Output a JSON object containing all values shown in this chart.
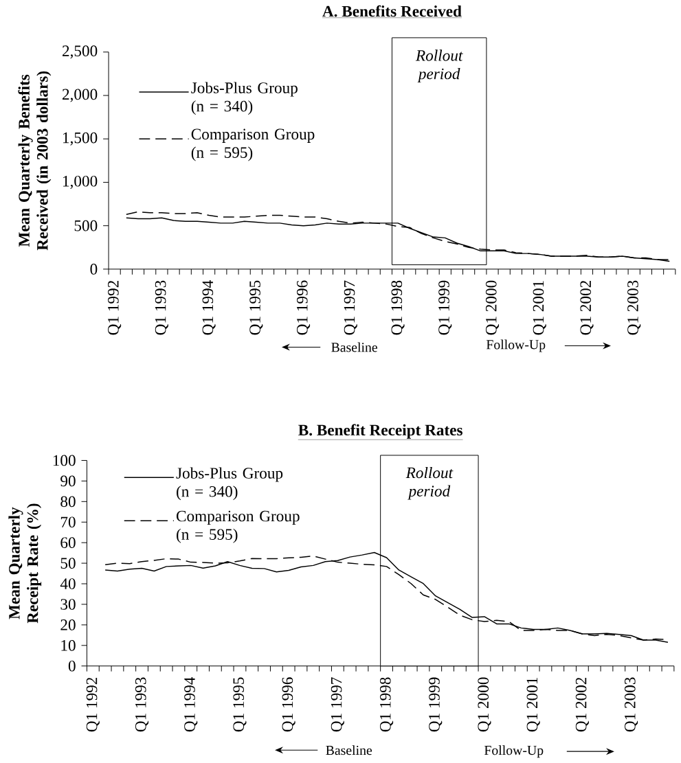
{
  "chart_data": [
    {
      "type": "line",
      "title": "A. Benefits Received",
      "ylabel": "Mean Quarterly Benefits Received (in 2003 dollars)",
      "categories": [
        "Q1 1992",
        null,
        null,
        null,
        "Q1 1993",
        null,
        null,
        null,
        "Q1 1994",
        null,
        null,
        null,
        "Q1 1995",
        null,
        null,
        null,
        "Q1 1996",
        null,
        null,
        null,
        "Q1 1997",
        null,
        null,
        null,
        "Q1 1998",
        null,
        null,
        null,
        "Q1 1999",
        null,
        null,
        null,
        "Q1 2000",
        null,
        null,
        null,
        "Q1 2001",
        null,
        null,
        null,
        "Q1 2002",
        null,
        null,
        null,
        "Q1 2003",
        null,
        null,
        null
      ],
      "series": [
        {
          "name": "Jobs-Plus Group (n = 340)",
          "color": "#000000",
          "line_style": "solid",
          "values": [
            null,
            590,
            580,
            580,
            590,
            560,
            550,
            550,
            540,
            530,
            530,
            550,
            540,
            530,
            530,
            510,
            500,
            510,
            530,
            520,
            520,
            530,
            530,
            530,
            530,
            470,
            420,
            370,
            360,
            300,
            260,
            210,
            210,
            210,
            180,
            180,
            170,
            150,
            150,
            150,
            150,
            140,
            140,
            150,
            130,
            120,
            110,
            90
          ]
        },
        {
          "name": "Comparison Group (n = 595)",
          "color": "#000000",
          "line_style": "dashed",
          "values": [
            null,
            630,
            660,
            650,
            650,
            640,
            640,
            650,
            620,
            600,
            600,
            600,
            610,
            620,
            620,
            610,
            600,
            600,
            580,
            550,
            530,
            540,
            530,
            520,
            490,
            480,
            410,
            360,
            320,
            290,
            250,
            230,
            220,
            220,
            190,
            180,
            170,
            150,
            150,
            150,
            160,
            140,
            140,
            150,
            130,
            130,
            110,
            110
          ]
        }
      ],
      "ylim": [
        0,
        2500
      ],
      "yticks": [
        0,
        500,
        {
          "value": 1000,
          "label": "1,000"
        },
        {
          "value": 1500,
          "label": "1,500"
        },
        {
          "value": 2000,
          "label": "2,000"
        },
        {
          "value": 2500,
          "label": "2,500"
        }
      ],
      "legend": "top left",
      "marker": "none",
      "bands": [
        {
          "axis": "x",
          "from": "Q1 1998",
          "to": "Q1 2000",
          "label": "Rollout period"
        }
      ],
      "annotations": [
        "Baseline",
        "Follow-Up"
      ]
    },
    {
      "type": "line",
      "title": "B. Benefit Receipt Rates",
      "ylabel": "Mean Quarterly Receipt Rate (%)",
      "categories": [
        "Q1 1992",
        null,
        null,
        null,
        "Q1 1993",
        null,
        null,
        null,
        "Q1 1994",
        null,
        null,
        null,
        "Q1 1995",
        null,
        null,
        null,
        "Q1 1996",
        null,
        null,
        null,
        "Q1 1997",
        null,
        null,
        null,
        "Q1 1998",
        null,
        null,
        null,
        "Q1 1999",
        null,
        null,
        null,
        "Q1 2000",
        null,
        null,
        null,
        "Q1 2001",
        null,
        null,
        null,
        "Q1 2002",
        null,
        null,
        null,
        "Q1 2003",
        null,
        null,
        null
      ],
      "series": [
        {
          "name": "Jobs-Plus Group (n = 340)",
          "color": "#000000",
          "line_style": "solid",
          "values": [
            null,
            46.7,
            46.2,
            47.1,
            47.5,
            46.2,
            48.4,
            48.7,
            48.9,
            47.6,
            48.7,
            50.8,
            48.9,
            47.5,
            47.4,
            45.8,
            46.5,
            48.2,
            48.9,
            50.8,
            51.3,
            53.0,
            54.0,
            55.2,
            52.7,
            46.7,
            43.4,
            40.1,
            34.1,
            30.8,
            27.5,
            23.6,
            24.0,
            20.5,
            20.5,
            18.5,
            17.8,
            17.8,
            18.5,
            17.3,
            15.6,
            15.6,
            15.9,
            15.4,
            14.8,
            12.6,
            12.6,
            11.5
          ]
        },
        {
          "name": "Comparison Group (n = 595)",
          "color": "#000000",
          "line_style": "dashed",
          "values": [
            null,
            49.3,
            50.0,
            49.8,
            50.8,
            51.4,
            52.2,
            52.0,
            50.5,
            50.4,
            50.0,
            50.2,
            51.1,
            52.3,
            52.2,
            52.2,
            52.6,
            52.9,
            53.5,
            52.0,
            50.5,
            50.0,
            49.5,
            49.2,
            48.4,
            44.5,
            40.1,
            34.6,
            32.4,
            28.6,
            24.7,
            22.5,
            21.6,
            22.2,
            21.6,
            17.3,
            17.3,
            17.8,
            17.3,
            17.3,
            15.6,
            14.8,
            15.4,
            14.8,
            13.7,
            12.6,
            13.1,
            12.9
          ]
        }
      ],
      "ylim": [
        0,
        100
      ],
      "yticks": [
        0,
        10,
        20,
        30,
        40,
        50,
        60,
        70,
        80,
        90,
        100
      ],
      "legend": "top left",
      "marker": "none",
      "bands": [
        {
          "axis": "x",
          "from": "Q1 1998",
          "to": "Q1 2000",
          "label": "Rollout period"
        }
      ],
      "annotations": [
        "Baseline",
        "Follow-Up"
      ]
    }
  ]
}
